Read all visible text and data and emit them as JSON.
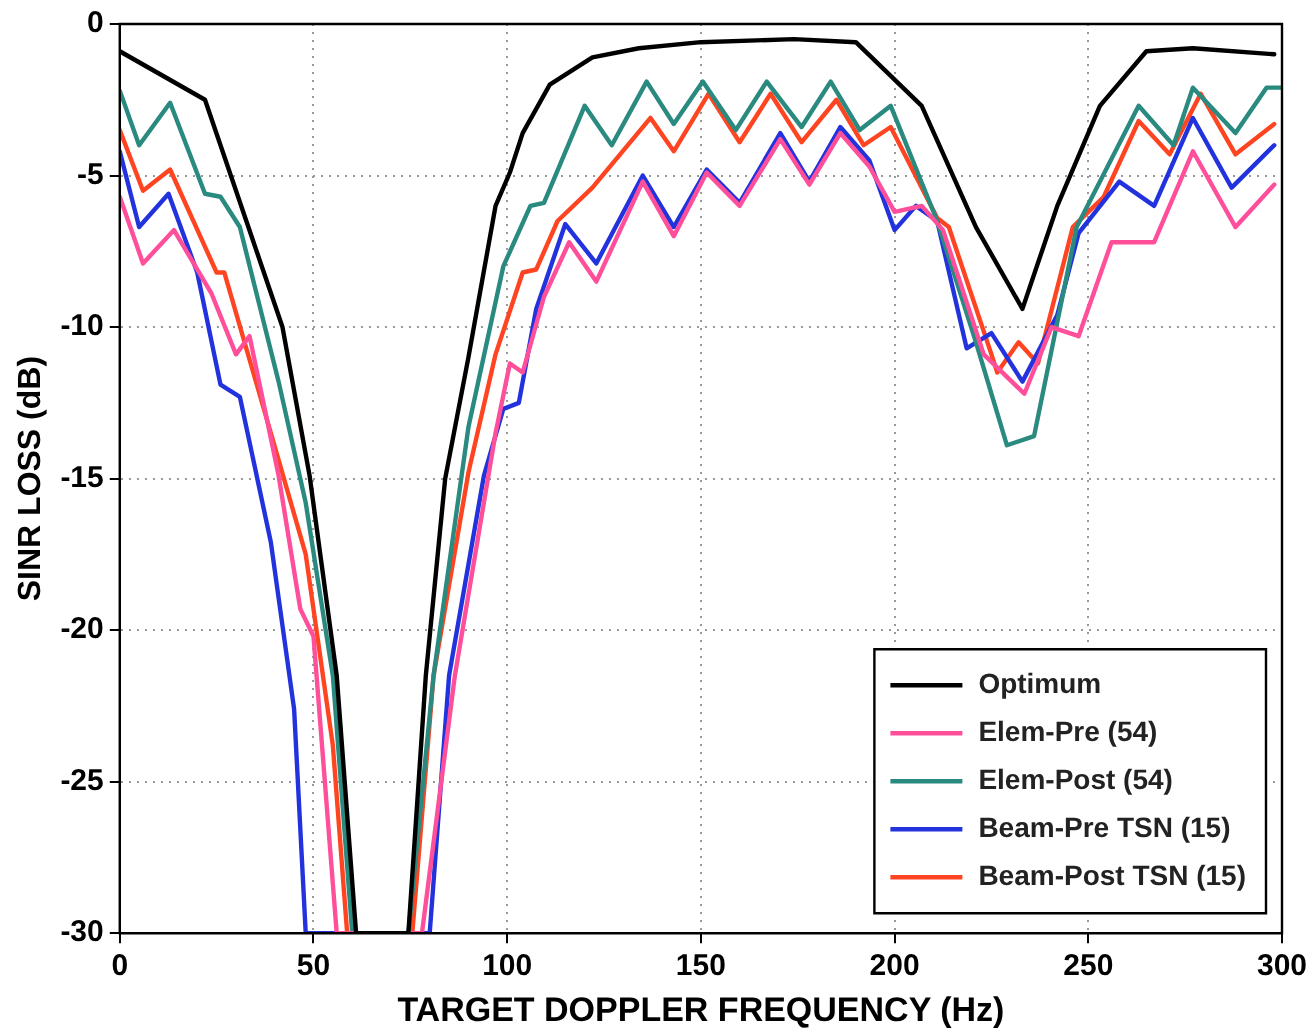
{
  "chart_data": {
    "type": "line",
    "xlabel": "TARGET DOPPLER FREQUENCY (Hz)",
    "ylabel": "SINR LOSS (dB)",
    "xlim": [
      0,
      300
    ],
    "xticks": [
      0,
      50,
      100,
      150,
      200,
      250,
      300
    ],
    "ylim": [
      -30,
      0
    ],
    "yticks": [
      -30,
      -25,
      -20,
      -15,
      -10,
      -5,
      0
    ],
    "grid": true,
    "legend": "bottom right",
    "marker": "none",
    "line_style": "solid",
    "series": [
      {
        "name": "Optimum",
        "color": "#000000",
        "x": [
          0,
          22,
          42,
          49,
          56,
          61,
          74.5,
          79,
          84,
          90,
          97,
          100.7,
          104,
          111,
          122,
          134,
          150,
          174,
          190,
          207,
          221,
          233,
          242,
          253,
          265,
          277,
          298
        ],
        "values": [
          -0.9,
          -2.5,
          -10,
          -14.9,
          -21.5,
          -30,
          -30,
          -21.5,
          -15,
          -11,
          -6,
          -4.9,
          -3.6,
          -2,
          -1.1,
          -0.8,
          -0.6,
          -0.5,
          -0.6,
          -2.7,
          -6.7,
          -9.4,
          -6,
          -2.7,
          -0.9,
          -0.8,
          -1
        ]
      },
      {
        "name": "Elem-Pre (54)",
        "color": "#ff4f9a",
        "x": [
          0,
          6,
          14,
          23.7,
          30,
          33.5,
          41,
          46.6,
          50,
          56,
          78,
          86.5,
          97,
          100.7,
          104,
          109.5,
          116,
          123,
          135,
          143,
          151.5,
          160,
          170.5,
          178,
          186,
          193.5,
          200,
          207,
          212.5,
          223,
          233.5,
          240.5,
          247.5,
          256,
          267,
          277,
          288,
          298
        ],
        "values": [
          -5.7,
          -7.9,
          -6.8,
          -8.9,
          -10.9,
          -10.3,
          -14.9,
          -19.3,
          -20.2,
          -30,
          -30,
          -21.5,
          -13.5,
          -11.2,
          -11.5,
          -9,
          -7.2,
          -8.5,
          -5.2,
          -7,
          -4.9,
          -6,
          -3.8,
          -5.3,
          -3.6,
          -4.7,
          -6.2,
          -6,
          -6.8,
          -10.9,
          -12.2,
          -10,
          -10.3,
          -7.2,
          -7.2,
          -4.2,
          -6.7,
          -5.3
        ]
      },
      {
        "name": "Elem-Post (54)",
        "color": "#2a8a80",
        "x": [
          0,
          5,
          13,
          22,
          26,
          31,
          41,
          48,
          55,
          60,
          74.5,
          81,
          90,
          99,
          106,
          109.5,
          120,
          127,
          136,
          143,
          150.5,
          159,
          167,
          176,
          183.5,
          191,
          199,
          211,
          221,
          229,
          236,
          247,
          263,
          272,
          277,
          288,
          296,
          300
        ],
        "values": [
          -2.2,
          -4,
          -2.6,
          -5.6,
          -5.7,
          -6.7,
          -11.8,
          -15.8,
          -21.5,
          -30,
          -30,
          -21.5,
          -13.3,
          -8,
          -6,
          -5.9,
          -2.7,
          -4,
          -1.9,
          -3.3,
          -1.9,
          -3.5,
          -1.9,
          -3.4,
          -1.9,
          -3.5,
          -2.7,
          -6.5,
          -10.5,
          -13.9,
          -13.6,
          -6.7,
          -2.7,
          -4,
          -2.1,
          -3.6,
          -2.1,
          -2.1
        ]
      },
      {
        "name": "Beam-Pre TSN (15)",
        "color": "#2233dd",
        "x": [
          0,
          5,
          12.6,
          20,
          26,
          31,
          39,
          45,
          48,
          80,
          85,
          94,
          99,
          103,
          107.5,
          115,
          123,
          135,
          143,
          151.5,
          160,
          170.5,
          178,
          186,
          193.5,
          200,
          205.5,
          211,
          218.6,
          225,
          233,
          242,
          247.5,
          258,
          267,
          277,
          287,
          298
        ],
        "values": [
          -4.2,
          -6.7,
          -5.6,
          -8.2,
          -11.9,
          -12.3,
          -17.1,
          -22.6,
          -30,
          -30,
          -21.5,
          -14.9,
          -12.7,
          -12.5,
          -9.4,
          -6.6,
          -7.9,
          -5,
          -6.7,
          -4.8,
          -5.9,
          -3.6,
          -5.2,
          -3.4,
          -4.5,
          -6.8,
          -6,
          -6.5,
          -10.7,
          -10.2,
          -11.8,
          -9.6,
          -6.9,
          -5.2,
          -6,
          -3.1,
          -5.4,
          -4
        ]
      },
      {
        "name": "Beam-Post TSN (15)",
        "color": "#ff4422",
        "x": [
          0,
          6,
          13,
          25,
          27,
          39,
          48,
          55,
          58.7,
          75.5,
          81,
          90,
          97,
          104,
          107.5,
          113,
          122,
          137,
          143,
          152,
          160,
          168,
          176,
          185,
          192,
          199,
          211,
          214,
          225,
          226.5,
          232,
          237,
          246,
          254,
          263,
          271,
          279,
          288,
          298
        ],
        "values": [
          -3.5,
          -5.5,
          -4.8,
          -8.2,
          -8.2,
          -13.5,
          -17.5,
          -23.8,
          -30,
          -30,
          -21.5,
          -14.8,
          -10.9,
          -8.2,
          -8.1,
          -6.5,
          -5.4,
          -3.1,
          -4.2,
          -2.3,
          -3.9,
          -2.3,
          -3.9,
          -2.5,
          -4,
          -3.4,
          -6.4,
          -6.7,
          -10.9,
          -11.5,
          -10.5,
          -11.2,
          -6.7,
          -5.7,
          -3.2,
          -4.3,
          -2.3,
          -4.3,
          -3.3
        ]
      }
    ]
  }
}
